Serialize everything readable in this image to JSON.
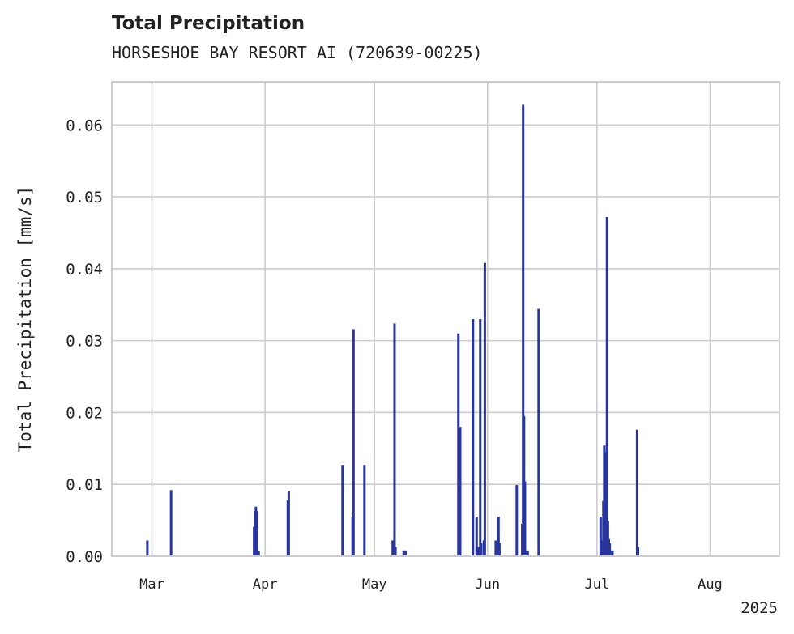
{
  "header": {
    "title": "Total Precipitation",
    "subtitle": "HORSESHOE BAY RESORT AI (720639-00225)"
  },
  "chart_data": {
    "type": "bar",
    "ylabel": "Total Precipitation [mm/s]",
    "ylim": [
      0,
      0.066
    ],
    "yticks": [
      0,
      0.01,
      0.02,
      0.03,
      0.04,
      0.05,
      0.06
    ],
    "ytick_labels": [
      "0.00",
      "0.01",
      "0.02",
      "0.03",
      "0.04",
      "0.05",
      "0.06"
    ],
    "xlim": [
      "2025-02-18",
      "2025-08-20"
    ],
    "xticks": [
      "2025-03-01",
      "2025-04-01",
      "2025-05-01",
      "2025-06-01",
      "2025-07-01",
      "2025-08-01"
    ],
    "xtick_labels": [
      "Mar",
      "Apr",
      "May",
      "Jun",
      "Jul",
      "Aug"
    ],
    "year_label": "2025",
    "grid": true,
    "bar_color": "#28359a",
    "x": [
      "2025-02-27T18:00",
      "2025-03-06T06:00",
      "2025-03-29T00:00",
      "2025-03-29T06:00",
      "2025-03-29T12:00",
      "2025-03-29T18:00",
      "2025-03-30T06:00",
      "2025-04-07T06:00",
      "2025-04-07T12:00",
      "2025-04-22T06:00",
      "2025-04-25T00:00",
      "2025-04-25T06:00",
      "2025-04-28T06:00",
      "2025-05-06T00:00",
      "2025-05-06T12:00",
      "2025-05-06T18:00",
      "2025-05-09T00:00",
      "2025-05-09T06:00",
      "2025-05-09T12:00",
      "2025-05-24T00:00",
      "2025-05-24T06:00",
      "2025-05-24T12:00",
      "2025-05-28T00:00",
      "2025-05-29T00:00",
      "2025-05-29T12:00",
      "2025-05-30T00:00",
      "2025-05-30T06:00",
      "2025-05-31T00:00",
      "2025-05-31T06:00",
      "2025-06-03T06:00",
      "2025-06-03T12:00",
      "2025-06-04T00:00",
      "2025-06-04T06:00",
      "2025-06-09T00:00",
      "2025-06-10T12:00",
      "2025-06-10T18:00",
      "2025-06-11T00:00",
      "2025-06-11T06:00",
      "2025-06-11T12:00",
      "2025-06-12T00:00",
      "2025-06-15T00:00",
      "2025-07-02T00:00",
      "2025-07-02T06:00",
      "2025-07-02T18:00",
      "2025-07-03T00:00",
      "2025-07-03T06:00",
      "2025-07-03T12:00",
      "2025-07-03T18:00",
      "2025-07-04T00:00",
      "2025-07-04T06:00",
      "2025-07-04T12:00",
      "2025-07-04T18:00",
      "2025-07-05T00:00",
      "2025-07-05T06:00",
      "2025-07-12T00:00",
      "2025-07-12T06:00"
    ],
    "values": [
      0.0022,
      0.0092,
      0.0041,
      0.0063,
      0.0069,
      0.0063,
      0.0008,
      0.0078,
      0.0091,
      0.0127,
      0.0055,
      0.0316,
      0.0127,
      0.0022,
      0.0324,
      0.0013,
      0.0008,
      0.0008,
      0.0008,
      0.031,
      0.0082,
      0.018,
      0.033,
      0.0055,
      0.0013,
      0.033,
      0.0018,
      0.0022,
      0.0408,
      0.0022,
      0.0018,
      0.0055,
      0.0018,
      0.0099,
      0.0045,
      0.0628,
      0.0195,
      0.0104,
      0.0008,
      0.0008,
      0.0344,
      0.0055,
      0.0022,
      0.0077,
      0.0154,
      0.0145,
      0.0055,
      0.0472,
      0.0049,
      0.0024,
      0.0018,
      0.0008,
      0.0008,
      0.0008,
      0.0176,
      0.0013
    ]
  }
}
